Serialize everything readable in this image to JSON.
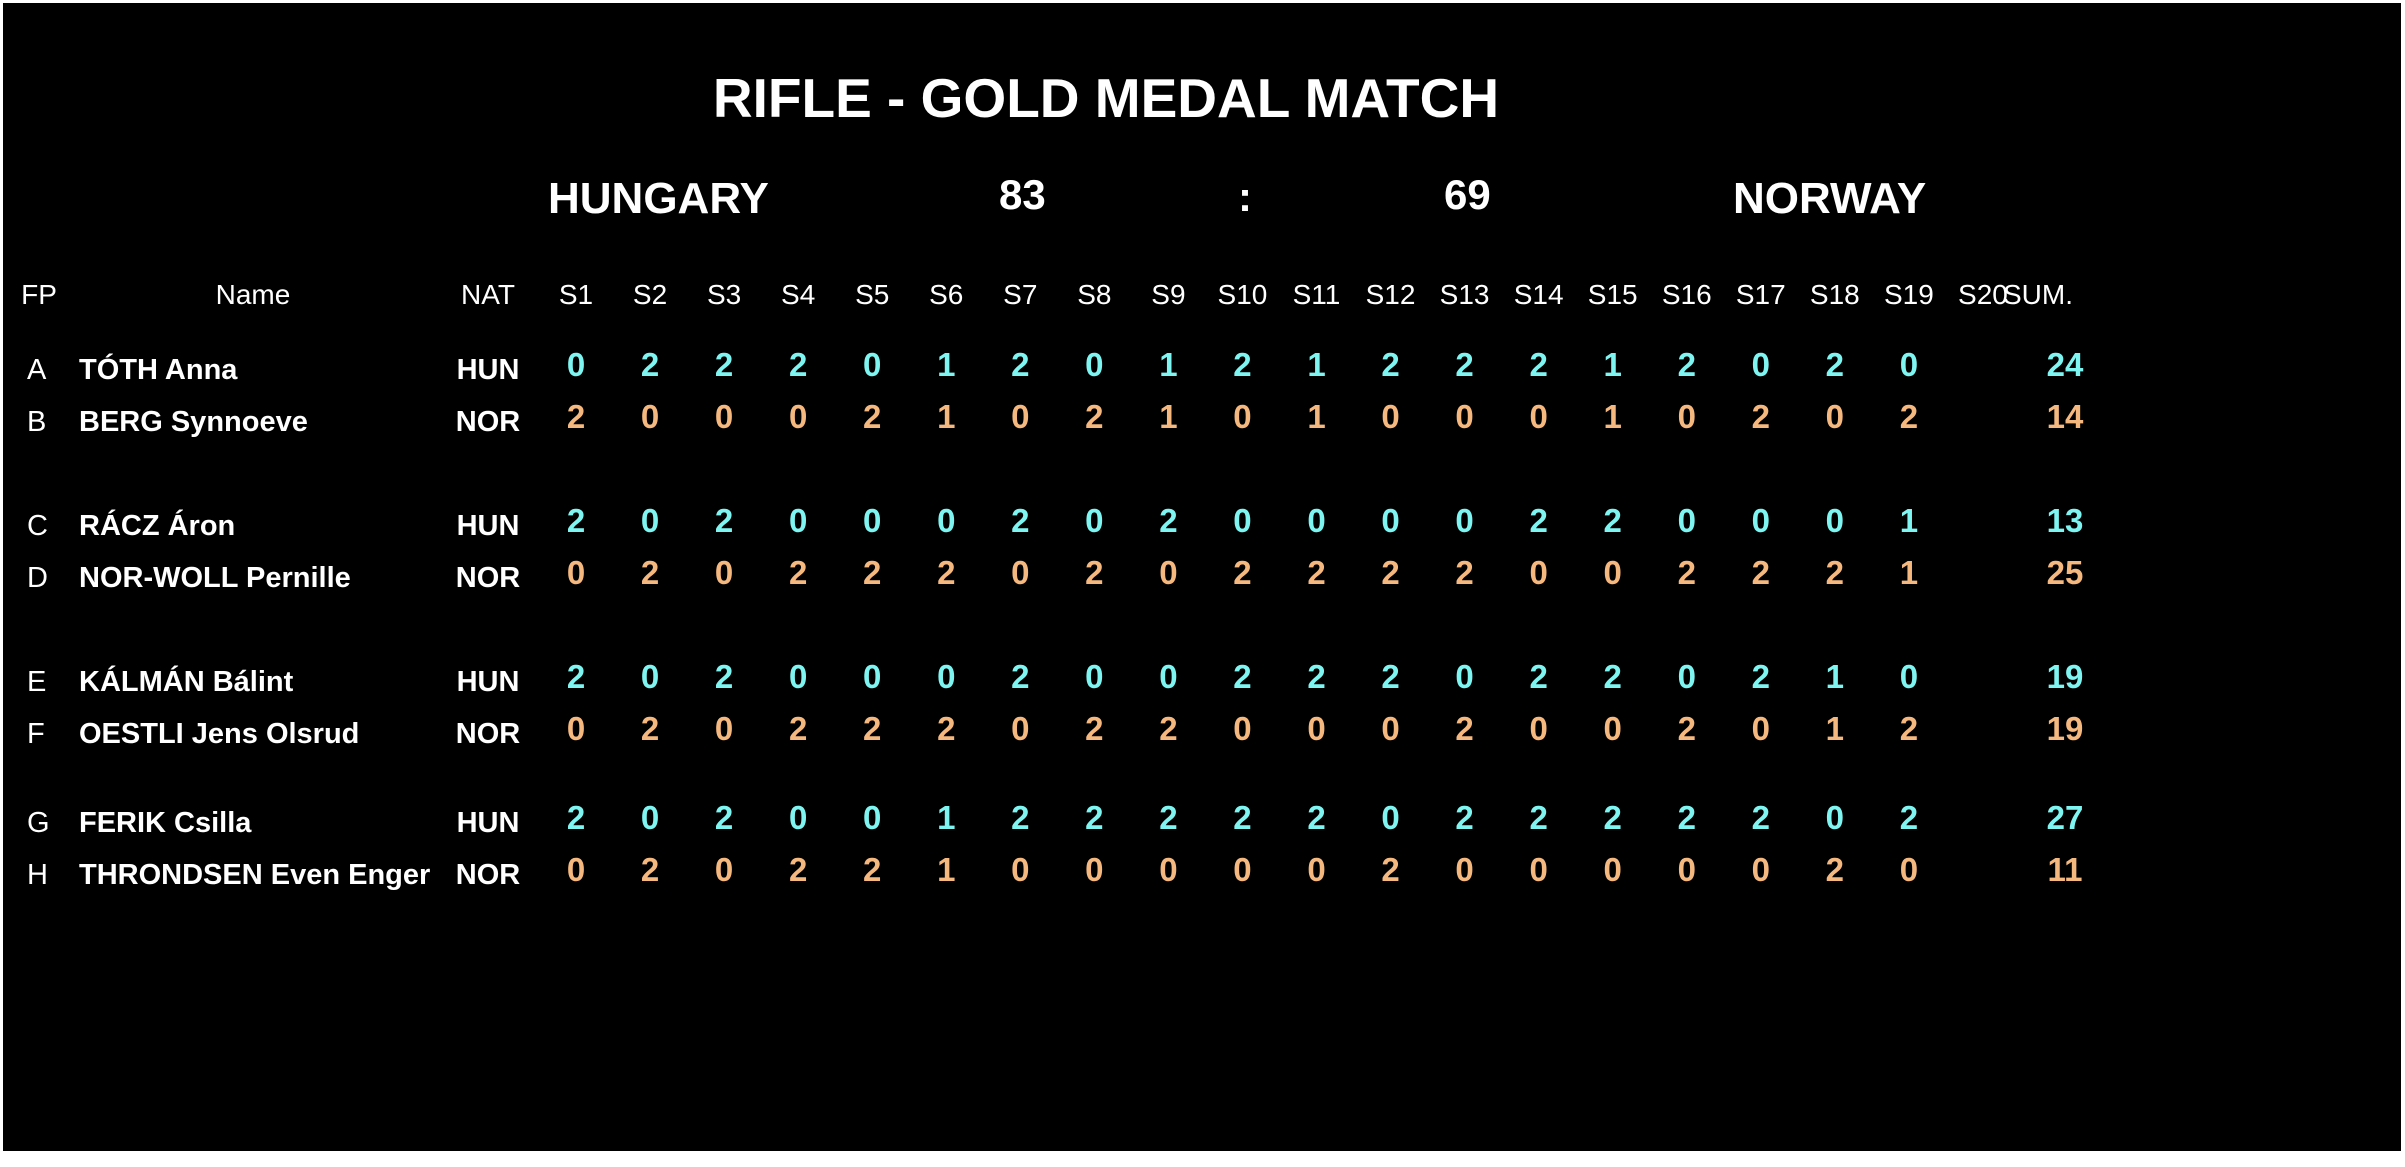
{
  "title": "RIFLE - GOLD MEDAL MATCH",
  "teams": {
    "left": {
      "name": "HUNGARY",
      "score": "83"
    },
    "separator": ":",
    "right": {
      "name": "NORWAY",
      "score": "69"
    }
  },
  "colors": {
    "background": "#000000",
    "text": "#ffffff",
    "HUN": "#7ff5f2",
    "NOR": "#f5b87f"
  },
  "columns": {
    "fp": "FP",
    "name": "Name",
    "nat": "NAT",
    "series": [
      "S1",
      "S2",
      "S3",
      "S4",
      "S5",
      "S6",
      "S7",
      "S8",
      "S9",
      "S10",
      "S11",
      "S12",
      "S13",
      "S14",
      "S15",
      "S16",
      "S17",
      "S18",
      "S19",
      "S20"
    ],
    "sum": "SUM."
  },
  "matches": [
    [
      {
        "fp": "A",
        "name": "TÓTH Anna",
        "nat": "HUN",
        "scores": [
          "0",
          "2",
          "2",
          "2",
          "0",
          "1",
          "2",
          "0",
          "1",
          "2",
          "1",
          "2",
          "2",
          "2",
          "1",
          "2",
          "0",
          "2",
          "0",
          ""
        ],
        "sum": "24"
      },
      {
        "fp": "B",
        "name": "BERG Synnoeve",
        "nat": "NOR",
        "scores": [
          "2",
          "0",
          "0",
          "0",
          "2",
          "1",
          "0",
          "2",
          "1",
          "0",
          "1",
          "0",
          "0",
          "0",
          "1",
          "0",
          "2",
          "0",
          "2",
          ""
        ],
        "sum": "14"
      }
    ],
    [
      {
        "fp": "C",
        "name": "RÁCZ Áron",
        "nat": "HUN",
        "scores": [
          "2",
          "0",
          "2",
          "0",
          "0",
          "0",
          "2",
          "0",
          "2",
          "0",
          "0",
          "0",
          "0",
          "2",
          "2",
          "0",
          "0",
          "0",
          "1",
          ""
        ],
        "sum": "13"
      },
      {
        "fp": "D",
        "name": "NOR-WOLL Pernille",
        "nat": "NOR",
        "scores": [
          "0",
          "2",
          "0",
          "2",
          "2",
          "2",
          "0",
          "2",
          "0",
          "2",
          "2",
          "2",
          "2",
          "0",
          "0",
          "2",
          "2",
          "2",
          "1",
          ""
        ],
        "sum": "25"
      }
    ],
    [
      {
        "fp": "E",
        "name": "KÁLMÁN Bálint",
        "nat": "HUN",
        "scores": [
          "2",
          "0",
          "2",
          "0",
          "0",
          "0",
          "2",
          "0",
          "0",
          "2",
          "2",
          "2",
          "0",
          "2",
          "2",
          "0",
          "2",
          "1",
          "0",
          ""
        ],
        "sum": "19"
      },
      {
        "fp": "F",
        "name": "OESTLI Jens Olsrud",
        "nat": "NOR",
        "scores": [
          "0",
          "2",
          "0",
          "2",
          "2",
          "2",
          "0",
          "2",
          "2",
          "0",
          "0",
          "0",
          "2",
          "0",
          "0",
          "2",
          "0",
          "1",
          "2",
          ""
        ],
        "sum": "19"
      }
    ],
    [
      {
        "fp": "G",
        "name": "FERIK Csilla",
        "nat": "HUN",
        "scores": [
          "2",
          "0",
          "2",
          "0",
          "0",
          "1",
          "2",
          "2",
          "2",
          "2",
          "2",
          "0",
          "2",
          "2",
          "2",
          "2",
          "2",
          "0",
          "2",
          ""
        ],
        "sum": "27"
      },
      {
        "fp": "H",
        "name": "THRONDSEN Even Enger",
        "nat": "NOR",
        "scores": [
          "0",
          "2",
          "0",
          "2",
          "2",
          "1",
          "0",
          "0",
          "0",
          "0",
          "0",
          "2",
          "0",
          "0",
          "0",
          "0",
          "0",
          "2",
          "0",
          ""
        ],
        "sum": "11"
      }
    ]
  ]
}
